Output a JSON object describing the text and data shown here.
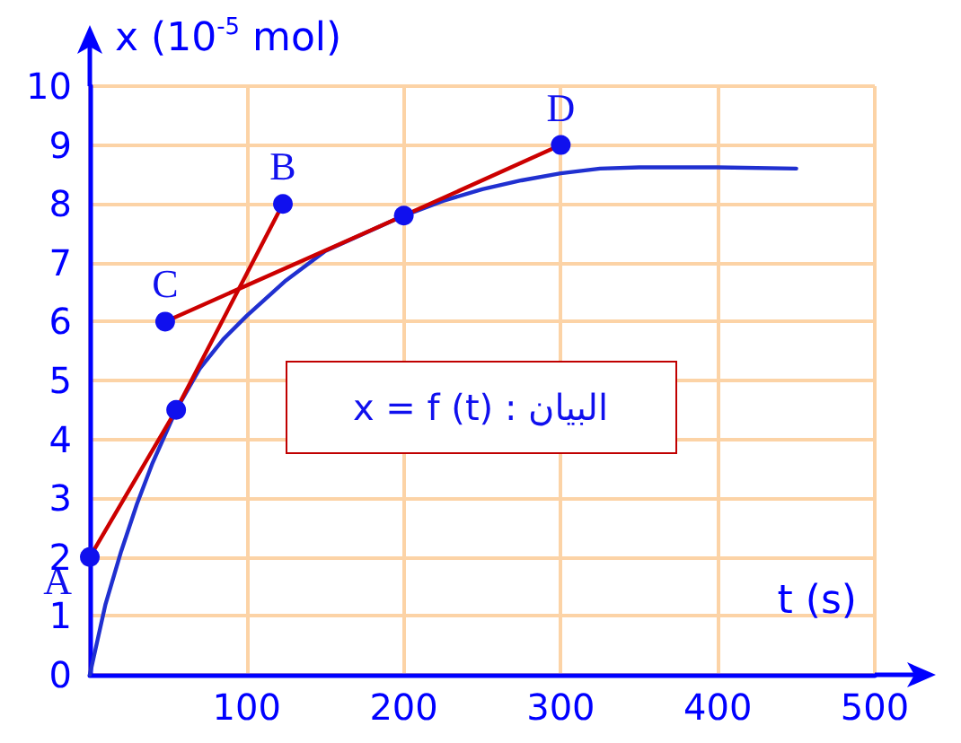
{
  "chart_data": {
    "type": "line",
    "xlabel": "t (s)",
    "ylabel": "x (10$^{-5}$ mol)",
    "xlim": [
      0,
      500
    ],
    "ylim": [
      0,
      10
    ],
    "xticks": [
      {
        "value": 0,
        "label": null
      },
      100,
      200,
      300,
      400,
      500
    ],
    "yticks": [
      0,
      1,
      2,
      3,
      4,
      5,
      6,
      7,
      8,
      9,
      10
    ],
    "grid": true,
    "series": [
      {
        "color": "#2030d0",
        "marker": "none",
        "x": [
          0,
          5,
          10,
          20,
          30,
          40,
          55,
          70,
          85,
          100,
          125,
          150,
          175,
          200,
          225,
          250,
          275,
          300,
          325,
          350,
          400,
          450
        ],
        "values": [
          0,
          0.6,
          1.2,
          2.1,
          2.9,
          3.6,
          4.5,
          5.2,
          5.7,
          6.1,
          6.7,
          7.2,
          7.5,
          7.8,
          8.05,
          8.25,
          8.4,
          8.52,
          8.6,
          8.62,
          8.62,
          8.6
        ]
      },
      {
        "color": "#cc0000",
        "marker": "circle",
        "x": [
          0,
          55,
          123
        ],
        "values": [
          2,
          4.5,
          8
        ]
      },
      {
        "color": "#cc0000",
        "marker": "circle",
        "x": [
          48,
          200,
          300
        ],
        "values": [
          6,
          7.8,
          9
        ]
      }
    ],
    "annotations": [
      {
        "text": "A",
        "x": 0,
        "y": 2
      },
      {
        "text": "B",
        "x": 123,
        "y": 8
      },
      {
        "text": "C",
        "x": 48,
        "y": 6
      },
      {
        "text": "D",
        "x": 300,
        "y": 9
      },
      "x = f (t) : البيان"
    ]
  }
}
